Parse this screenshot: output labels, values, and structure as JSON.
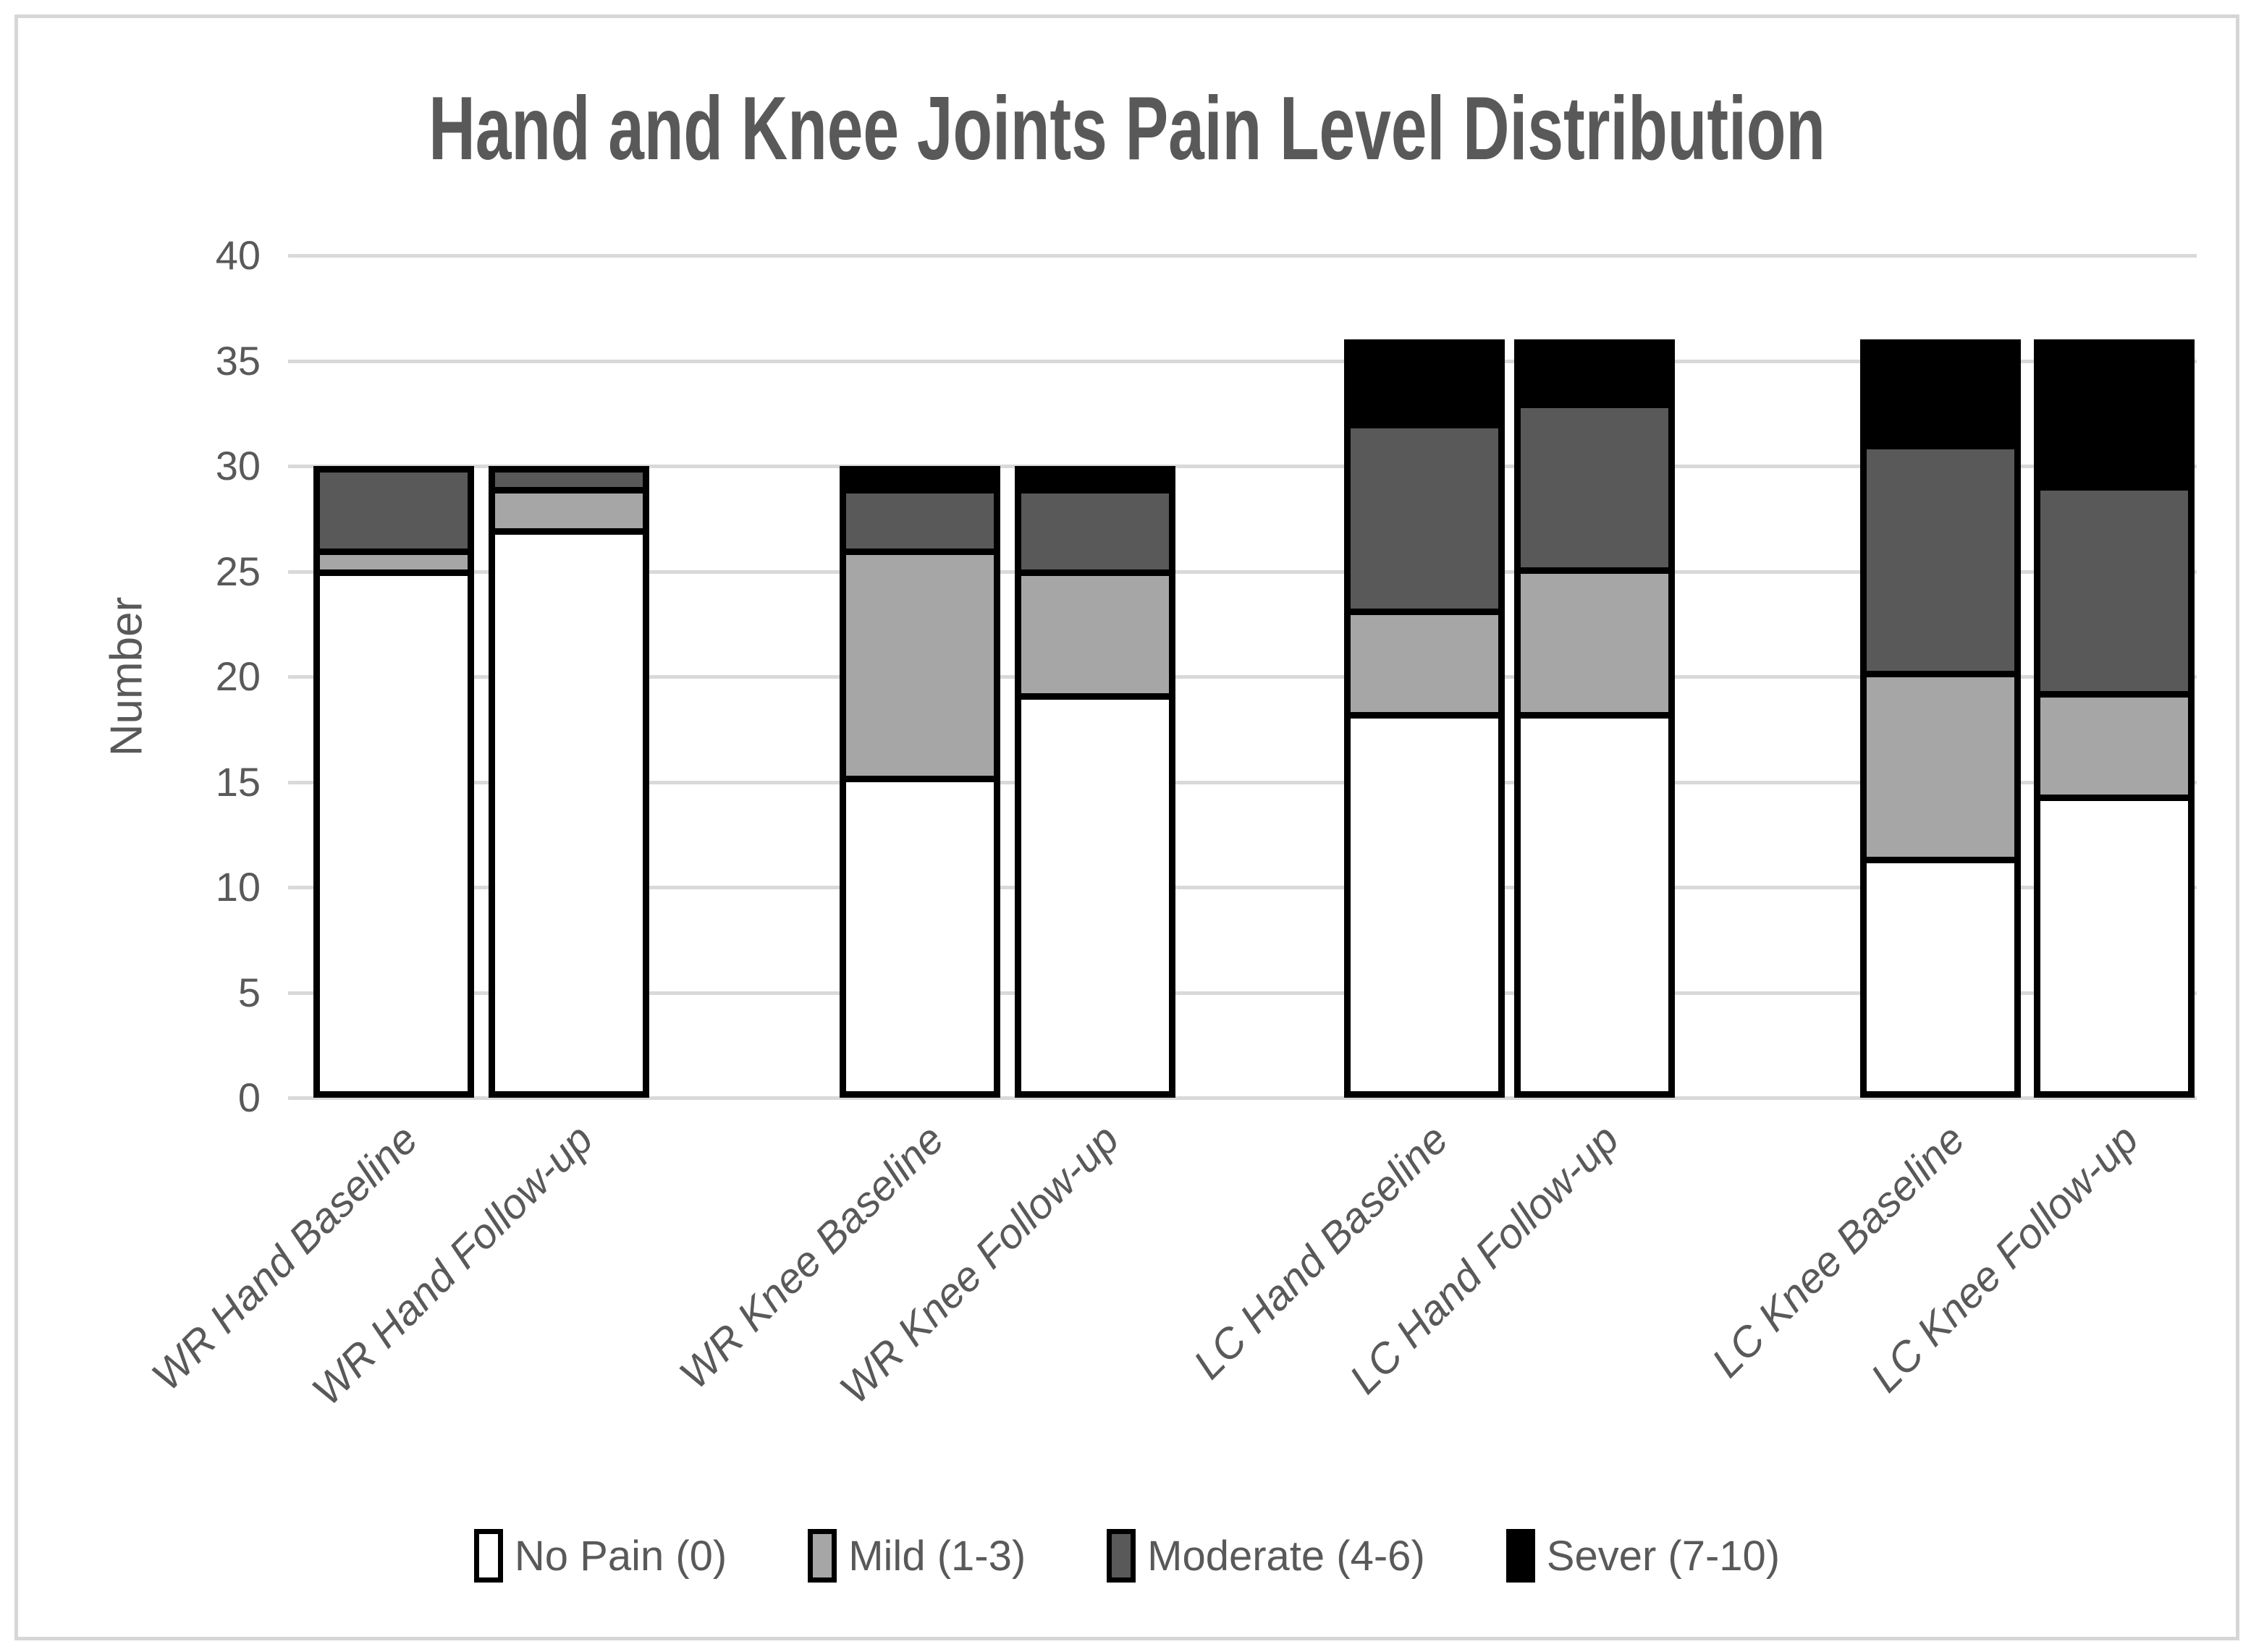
{
  "chart_data": {
    "type": "bar",
    "stacked": true,
    "title": "Hand and Knee Joints Pain Level Distribution",
    "xlabel": "",
    "ylabel": "Number",
    "ylim": [
      0,
      40
    ],
    "ytick_labels": [
      "0",
      "5",
      "10",
      "15",
      "20",
      "25",
      "30",
      "35",
      "40"
    ],
    "grid": true,
    "legend_position": "bottom",
    "categories": [
      "WR Hand Baseline",
      "WR Hand Follow-up",
      "WR Knee Baseline",
      "WR Knee Follow-up",
      "LC Hand Baseline",
      "LC Hand Follow-up",
      "LC Knee Baseline",
      "LC Knee Follow-up"
    ],
    "series": [
      {
        "name": "No Pain (0)",
        "color": "#ffffff",
        "values": [
          25,
          27,
          15,
          19,
          18,
          18,
          11,
          14
        ]
      },
      {
        "name": "Mild (1-3)",
        "color": "#a6a6a6",
        "values": [
          1,
          2,
          11,
          6,
          5,
          7,
          9,
          5
        ]
      },
      {
        "name": "Moderate (4-6)",
        "color": "#595959",
        "values": [
          4,
          1,
          3,
          4,
          9,
          8,
          11,
          10
        ]
      },
      {
        "name": "Sever (7-10)",
        "color": "#000000",
        "values": [
          0,
          0,
          1,
          1,
          4,
          3,
          5,
          7
        ]
      }
    ],
    "bar_totals": [
      30,
      30,
      30,
      30,
      36,
      36,
      36,
      36
    ]
  },
  "colors": {
    "text": "#595959",
    "gridline": "#d9d9d9",
    "frame_border": "#d6d6d6",
    "bar_border": "#000000"
  }
}
